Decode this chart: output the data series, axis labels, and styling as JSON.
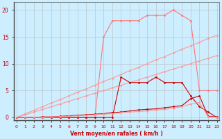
{
  "xlabel": "Vent moyen/en rafales ( km/h )",
  "x": [
    0,
    1,
    2,
    3,
    4,
    5,
    6,
    7,
    8,
    9,
    10,
    11,
    12,
    13,
    14,
    15,
    16,
    17,
    18,
    19,
    20,
    21,
    22,
    23
  ],
  "line_top_pink": [
    0,
    0,
    0,
    0,
    0,
    0,
    0,
    0,
    0,
    0,
    15,
    18,
    18,
    18,
    18,
    19,
    19,
    19,
    20,
    19,
    18,
    5,
    5,
    5
  ],
  "line_dark_peak": [
    0,
    0,
    0,
    0,
    0,
    0,
    0,
    0,
    0,
    0,
    0,
    0,
    7.5,
    6.5,
    6.5,
    6.5,
    7.5,
    6.5,
    6.5,
    6.5,
    4,
    2,
    1,
    0
  ],
  "line_diag1": [
    0,
    0.7,
    1.3,
    2.0,
    2.7,
    3.3,
    4.0,
    4.7,
    5.3,
    6.0,
    6.7,
    7.3,
    8.0,
    8.7,
    9.3,
    10.0,
    10.7,
    11.3,
    12.0,
    12.7,
    13.3,
    14.0,
    14.7,
    15.3
  ],
  "line_diag2": [
    0,
    0.5,
    1.0,
    1.5,
    2.0,
    2.5,
    3.0,
    3.5,
    4.0,
    4.5,
    5.0,
    5.5,
    6.0,
    6.5,
    7.0,
    7.5,
    8.0,
    8.5,
    9.0,
    9.5,
    10.0,
    10.5,
    11.0,
    11.5
  ],
  "line_bottom_dark": [
    0,
    0,
    0,
    0.1,
    0.1,
    0.2,
    0.3,
    0.4,
    0.5,
    0.6,
    0.7,
    0.9,
    1.0,
    1.2,
    1.4,
    1.5,
    1.6,
    1.8,
    2.0,
    2.2,
    3.5,
    4.0,
    0.2,
    0.1
  ],
  "line_bottom_pink": [
    0,
    0,
    0,
    0.05,
    0.1,
    0.15,
    0.2,
    0.3,
    0.4,
    0.5,
    0.6,
    0.7,
    0.9,
    1.0,
    1.1,
    1.2,
    1.4,
    1.5,
    1.7,
    2.0,
    2.5,
    2.8,
    0.1,
    0.05
  ],
  "bg_color": "#cceeff",
  "grid_color": "#bbbbbb",
  "color_light_pink": "#ff9999",
  "color_dark_red": "#cc0000",
  "color_mid_pink": "#ff7777",
  "tick_color": "#cc0000",
  "xlabel_color": "#cc0000",
  "ylabel_ticks": [
    0,
    5,
    10,
    15,
    20
  ],
  "ylim": [
    -0.5,
    21.5
  ],
  "xlim": [
    -0.3,
    23.3
  ],
  "markersize": 2.0
}
